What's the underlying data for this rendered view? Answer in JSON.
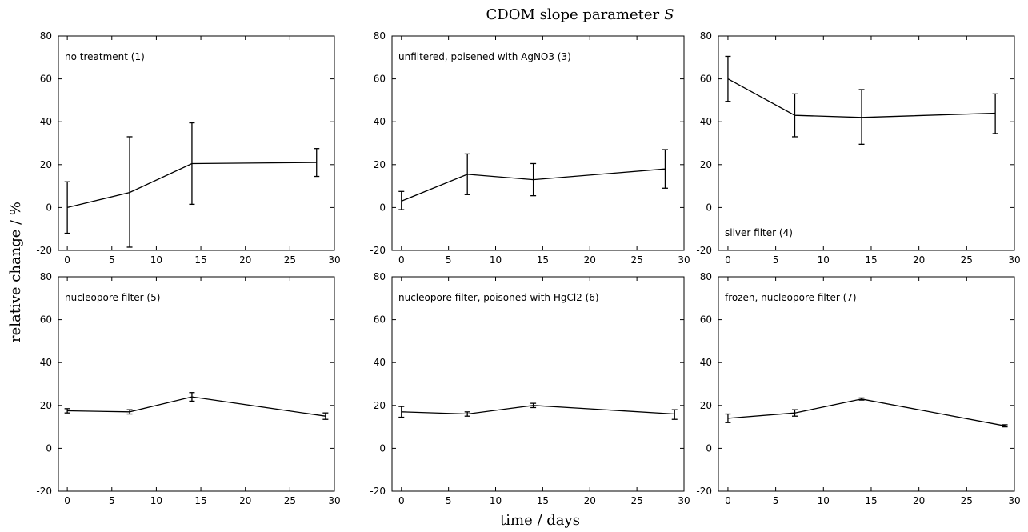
{
  "figure": {
    "title": "CDOM slope parameter",
    "title_symbol": "S",
    "xlabel": "time / days",
    "ylabel": "relative change / %"
  },
  "chart_data": [
    {
      "type": "line",
      "panel_label": "no treatment (1)",
      "label_position": "top-left",
      "x": [
        0,
        7,
        14,
        28
      ],
      "y": [
        0,
        7,
        20.5,
        21
      ],
      "err_low": [
        -12,
        -18.5,
        1.5,
        14.5
      ],
      "err_high": [
        12,
        33,
        39.5,
        27.5
      ],
      "xlim": [
        -1,
        30
      ],
      "ylim": [
        -20,
        80
      ],
      "xticks": [
        0,
        5,
        10,
        15,
        20,
        25,
        30
      ],
      "yticks": [
        -20,
        0,
        20,
        40,
        60,
        80
      ],
      "color": "#000000"
    },
    {
      "type": "line",
      "panel_label": "unfiltered, poisened with AgNO3 (3)",
      "label_position": "top-left",
      "x": [
        0,
        7,
        14,
        28
      ],
      "y": [
        3,
        15.5,
        13,
        18
      ],
      "err_low": [
        -1,
        6,
        5.5,
        9
      ],
      "err_high": [
        7.5,
        25,
        20.5,
        27
      ],
      "xlim": [
        -1,
        30
      ],
      "ylim": [
        -20,
        80
      ],
      "xticks": [
        0,
        5,
        10,
        15,
        20,
        25,
        30
      ],
      "yticks": [
        -20,
        0,
        20,
        40,
        60,
        80
      ],
      "color": "#000000"
    },
    {
      "type": "line",
      "panel_label": "silver filter (4)",
      "label_position": "bottom-left",
      "x": [
        0,
        7,
        14,
        28
      ],
      "y": [
        60,
        43,
        42,
        44
      ],
      "err_low": [
        49.5,
        33,
        29.5,
        34.5
      ],
      "err_high": [
        70.5,
        53,
        55,
        53
      ],
      "xlim": [
        -1,
        30
      ],
      "ylim": [
        -20,
        80
      ],
      "xticks": [
        0,
        5,
        10,
        15,
        20,
        25,
        30
      ],
      "yticks": [
        -20,
        0,
        20,
        40,
        60,
        80
      ],
      "color": "#000000"
    },
    {
      "type": "line",
      "panel_label": "nucleopore filter (5)",
      "label_position": "top-left",
      "x": [
        0,
        7,
        14,
        29
      ],
      "y": [
        17.5,
        17,
        24,
        15
      ],
      "err_low": [
        16.5,
        16,
        22,
        13.5
      ],
      "err_high": [
        18.5,
        18,
        26,
        16.5
      ],
      "xlim": [
        -1,
        30
      ],
      "ylim": [
        -20,
        80
      ],
      "xticks": [
        0,
        5,
        10,
        15,
        20,
        25,
        30
      ],
      "yticks": [
        -20,
        0,
        20,
        40,
        60,
        80
      ],
      "color": "#000000"
    },
    {
      "type": "line",
      "panel_label": "nucleopore filter, poisoned with HgCl2 (6)",
      "label_position": "top-left",
      "x": [
        0,
        7,
        14,
        29
      ],
      "y": [
        17,
        16,
        20,
        16
      ],
      "err_low": [
        14.5,
        15,
        19,
        13.5
      ],
      "err_high": [
        19.5,
        17,
        21,
        18
      ],
      "xlim": [
        -1,
        30
      ],
      "ylim": [
        -20,
        80
      ],
      "xticks": [
        0,
        5,
        10,
        15,
        20,
        25,
        30
      ],
      "yticks": [
        -20,
        0,
        20,
        40,
        60,
        80
      ],
      "color": "#000000"
    },
    {
      "type": "line",
      "panel_label": "frozen, nucleopore filter (7)",
      "label_position": "top-left",
      "x": [
        0,
        7,
        14,
        29
      ],
      "y": [
        14,
        16.5,
        23,
        10.5
      ],
      "err_low": [
        12,
        15,
        22.5,
        10
      ],
      "err_high": [
        16,
        18,
        23.5,
        11
      ],
      "xlim": [
        -1,
        30
      ],
      "ylim": [
        -20,
        80
      ],
      "xticks": [
        0,
        5,
        10,
        15,
        20,
        25,
        30
      ],
      "yticks": [
        -20,
        0,
        20,
        40,
        60,
        80
      ],
      "color": "#000000"
    }
  ]
}
